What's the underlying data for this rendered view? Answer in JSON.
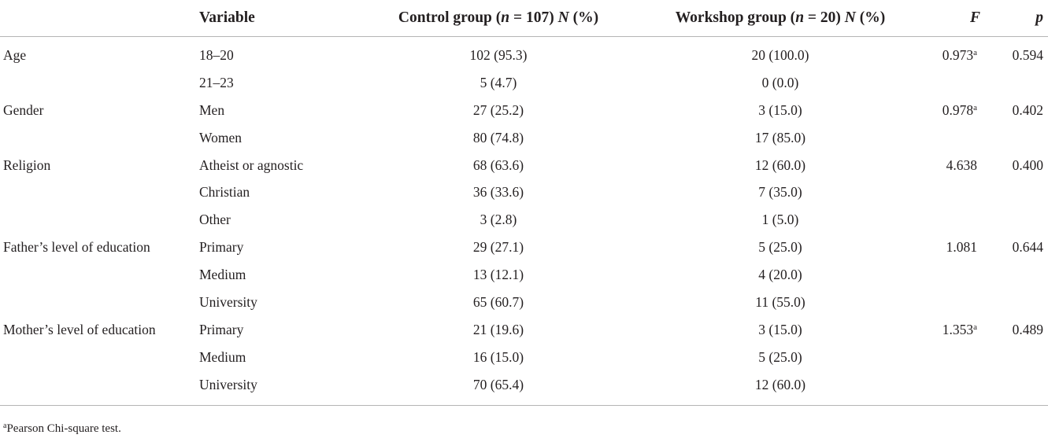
{
  "header": {
    "variable": "Variable",
    "control_main": "Control group (",
    "control_n_sym": "n",
    "control_n_val": " = 107) ",
    "control_N": "N",
    "control_pct": " (%)",
    "workshop_main": "Workshop group (",
    "workshop_n_sym": "n",
    "workshop_n_val": " = 20) ",
    "workshop_N": "N",
    "workshop_pct": " (%)",
    "f": "F",
    "p": "p"
  },
  "rows": [
    {
      "group": "Age",
      "level": "18–20",
      "control": "102 (95.3)",
      "workshop": "20 (100.0)",
      "f": "0.973",
      "f_sup": "a",
      "p": "0.594"
    },
    {
      "group": "",
      "level": "21–23",
      "control": "5 (4.7)",
      "workshop": "0 (0.0)",
      "f": "",
      "f_sup": "",
      "p": ""
    },
    {
      "group": "Gender",
      "level": "Men",
      "control": "27 (25.2)",
      "workshop": "3 (15.0)",
      "f": "0.978",
      "f_sup": "a",
      "p": "0.402"
    },
    {
      "group": "",
      "level": "Women",
      "control": "80 (74.8)",
      "workshop": "17 (85.0)",
      "f": "",
      "f_sup": "",
      "p": ""
    },
    {
      "group": "Religion",
      "level": "Atheist or agnostic",
      "control": "68 (63.6)",
      "workshop": "12 (60.0)",
      "f": "4.638",
      "f_sup": "",
      "p": "0.400"
    },
    {
      "group": "",
      "level": "Christian",
      "control": "36 (33.6)",
      "workshop": "7 (35.0)",
      "f": "",
      "f_sup": "",
      "p": ""
    },
    {
      "group": "",
      "level": "Other",
      "control": "3 (2.8)",
      "workshop": "1 (5.0)",
      "f": "",
      "f_sup": "",
      "p": ""
    },
    {
      "group": "Father’s level of education",
      "level": "Primary",
      "control": "29 (27.1)",
      "workshop": "5 (25.0)",
      "f": "1.081",
      "f_sup": "",
      "p": "0.644"
    },
    {
      "group": "",
      "level": "Medium",
      "control": "13 (12.1)",
      "workshop": "4 (20.0)",
      "f": "",
      "f_sup": "",
      "p": ""
    },
    {
      "group": "",
      "level": "University",
      "control": "65 (60.7)",
      "workshop": "11 (55.0)",
      "f": "",
      "f_sup": "",
      "p": ""
    },
    {
      "group": "Mother’s level of education",
      "level": "Primary",
      "control": "21 (19.6)",
      "workshop": "3 (15.0)",
      "f": "1.353",
      "f_sup": "a",
      "p": "0.489"
    },
    {
      "group": "",
      "level": "Medium",
      "control": "16 (15.0)",
      "workshop": "5 (25.0)",
      "f": "",
      "f_sup": "",
      "p": ""
    },
    {
      "group": "",
      "level": "University",
      "control": "70 (65.4)",
      "workshop": "12 (60.0)",
      "f": "",
      "f_sup": "",
      "p": ""
    }
  ],
  "footnote": {
    "marker": "a",
    "text": "Pearson Chi-square test."
  }
}
